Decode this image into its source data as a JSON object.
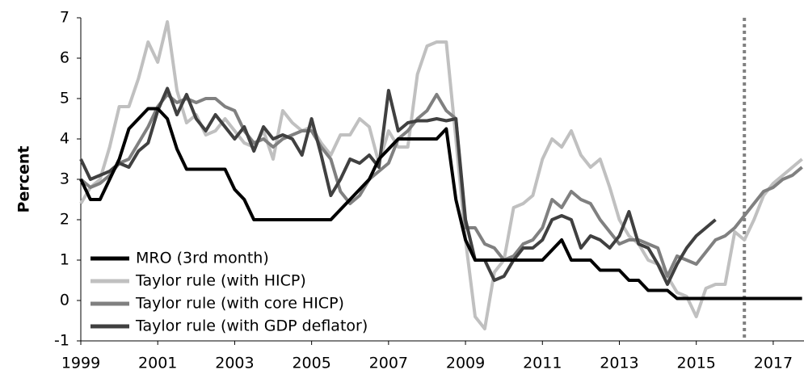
{
  "chart_data": {
    "type": "line",
    "ylabel": "Percent",
    "x": [
      1999,
      1999.25,
      1999.5,
      1999.75,
      2000,
      2000.25,
      2000.5,
      2000.75,
      2001,
      2001.25,
      2001.5,
      2001.75,
      2002,
      2002.25,
      2002.5,
      2002.75,
      2003,
      2003.25,
      2003.5,
      2003.75,
      2004,
      2004.25,
      2004.5,
      2004.75,
      2005,
      2005.25,
      2005.5,
      2005.75,
      2006,
      2006.25,
      2006.5,
      2006.75,
      2007,
      2007.25,
      2007.5,
      2007.75,
      2008,
      2008.25,
      2008.5,
      2008.75,
      2009,
      2009.25,
      2009.5,
      2009.75,
      2010,
      2010.25,
      2010.5,
      2010.75,
      2011,
      2011.25,
      2011.5,
      2011.75,
      2012,
      2012.25,
      2012.5,
      2012.75,
      2013,
      2013.25,
      2013.5,
      2013.75,
      2014,
      2014.25,
      2014.5,
      2014.75,
      2015,
      2015.25,
      2015.5,
      2015.75,
      2016,
      2016.25,
      2016.5,
      2016.75,
      2017,
      2017.25,
      2017.5,
      2017.75
    ],
    "series": [
      {
        "name": "MRO (3rd month)",
        "color": "#000000",
        "values": [
          3.0,
          2.5,
          2.5,
          3.0,
          3.5,
          4.25,
          4.5,
          4.75,
          4.75,
          4.5,
          3.75,
          3.25,
          3.25,
          3.25,
          3.25,
          3.25,
          2.75,
          2.5,
          2.0,
          2.0,
          2.0,
          2.0,
          2.0,
          2.0,
          2.0,
          2.0,
          2.0,
          2.25,
          2.5,
          2.75,
          3.0,
          3.5,
          3.75,
          4.0,
          4.0,
          4.0,
          4.0,
          4.0,
          4.25,
          2.5,
          1.5,
          1.0,
          1.0,
          1.0,
          1.0,
          1.0,
          1.0,
          1.0,
          1.0,
          1.25,
          1.5,
          1.0,
          1.0,
          1.0,
          0.75,
          0.75,
          0.75,
          0.5,
          0.5,
          0.25,
          0.25,
          0.25,
          0.05,
          0.05,
          0.05,
          0.05,
          0.05,
          0.05,
          0.05,
          0.05,
          0.05,
          0.05,
          0.05,
          0.05,
          0.05,
          0.05
        ]
      },
      {
        "name": "Taylor rule (with HICP)",
        "color": "#c0c0c0",
        "values": [
          2.4,
          2.8,
          3.0,
          3.8,
          4.8,
          4.8,
          5.5,
          6.4,
          5.9,
          6.9,
          5.2,
          4.4,
          4.6,
          4.1,
          4.2,
          4.5,
          4.2,
          3.9,
          3.8,
          4.2,
          3.5,
          4.7,
          4.4,
          4.2,
          4.3,
          3.9,
          3.6,
          4.1,
          4.1,
          4.5,
          4.3,
          3.4,
          4.2,
          3.8,
          3.8,
          5.6,
          6.3,
          6.4,
          6.4,
          4.0,
          1.5,
          -0.4,
          -0.7,
          0.7,
          1.0,
          2.3,
          2.4,
          2.6,
          3.5,
          4.0,
          3.8,
          4.2,
          3.6,
          3.3,
          3.5,
          2.8,
          2.0,
          1.6,
          1.4,
          1.0,
          0.9,
          0.6,
          0.2,
          0.1,
          -0.4,
          0.3,
          0.4,
          0.4,
          1.7,
          1.5,
          2.0,
          2.6,
          2.9,
          3.1,
          3.3,
          3.5
        ]
      },
      {
        "name": "Taylor rule (with core HICP)",
        "color": "#808080",
        "values": [
          3.0,
          2.8,
          2.9,
          3.1,
          3.4,
          3.5,
          3.9,
          4.3,
          4.8,
          5.1,
          4.9,
          5.0,
          4.9,
          5.0,
          5.0,
          4.8,
          4.7,
          4.2,
          3.9,
          4.0,
          3.8,
          4.0,
          4.1,
          4.2,
          4.2,
          3.8,
          3.5,
          2.7,
          2.4,
          2.6,
          3.0,
          3.2,
          3.4,
          4.0,
          4.2,
          4.5,
          4.7,
          5.1,
          4.7,
          4.5,
          1.8,
          1.8,
          1.4,
          1.3,
          1.0,
          1.1,
          1.4,
          1.5,
          1.8,
          2.5,
          2.3,
          2.7,
          2.5,
          2.4,
          2.0,
          1.7,
          1.4,
          1.5,
          1.5,
          1.4,
          1.3,
          0.6,
          1.1,
          1.0,
          0.9,
          1.2,
          1.5,
          1.6,
          1.8,
          2.1,
          2.4,
          2.7,
          2.8,
          3.0,
          3.1,
          3.3
        ]
      },
      {
        "name": "Taylor rule (with GDP deflator)",
        "color": "#404040",
        "values": [
          3.5,
          3.0,
          3.1,
          3.2,
          3.4,
          3.3,
          3.7,
          3.9,
          4.7,
          5.25,
          4.6,
          5.1,
          4.5,
          4.2,
          4.6,
          4.3,
          4.0,
          4.3,
          3.7,
          4.3,
          4.0,
          4.1,
          4.0,
          3.6,
          4.5,
          3.6,
          2.6,
          3.0,
          3.5,
          3.4,
          3.6,
          3.3,
          5.2,
          4.2,
          4.4,
          4.45,
          4.45,
          4.5,
          4.45,
          4.5,
          2.0,
          1.0,
          1.0,
          0.5,
          0.6,
          1.0,
          1.3,
          1.3,
          1.5,
          2.0,
          2.1,
          2.0,
          1.3,
          1.6,
          1.5,
          1.3,
          1.6,
          2.2,
          1.4,
          1.3,
          0.9,
          0.4,
          0.9,
          1.3,
          1.6,
          1.8,
          2.0,
          null,
          null,
          null,
          null,
          null,
          null,
          null,
          null,
          null
        ]
      }
    ],
    "xlim": [
      1999,
      2017.8
    ],
    "xticks": [
      1999,
      2001,
      2003,
      2005,
      2007,
      2009,
      2011,
      2013,
      2015,
      2017
    ],
    "ylim": [
      -1,
      7
    ],
    "yticks": [
      -1,
      0,
      1,
      2,
      3,
      4,
      5,
      6,
      7
    ],
    "vline": 2016.25,
    "vline_color": "#808080",
    "legend": "lower left",
    "grid": false
  }
}
